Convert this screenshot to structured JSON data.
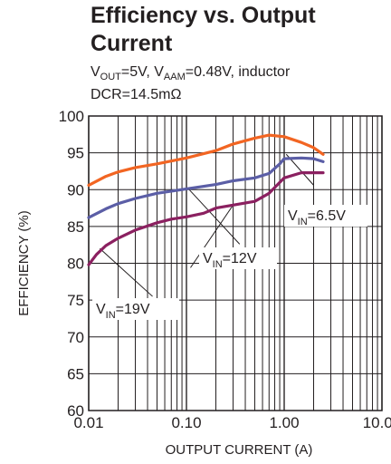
{
  "chart_data": {
    "type": "line",
    "title_line1": "Efficiency vs. Output",
    "title_line2": "Current",
    "subtitle_line1": {
      "v_out": "V",
      "v_out_sub": "OUT",
      "v_out_val": "=5V, ",
      "v_aam": "V",
      "v_aam_sub": "AAM",
      "v_aam_val": "=0.48V, inductor"
    },
    "subtitle_line2": "DCR=14.5mΩ",
    "xlabel": "OUTPUT CURRENT (A)",
    "ylabel": "EFFICIENCY (%)",
    "x_scale": "log",
    "xlim": [
      0.01,
      10
    ],
    "ylim": [
      60,
      100
    ],
    "x_ticks": [
      0.01,
      0.1,
      1,
      10
    ],
    "x_tick_labels": [
      "0.01",
      "0.10",
      "1.00",
      "10.00"
    ],
    "y_ticks": [
      60,
      65,
      70,
      75,
      80,
      85,
      90,
      95,
      100
    ],
    "y_tick_labels": [
      "60",
      "65",
      "70",
      "75",
      "80",
      "85",
      "90",
      "95",
      "100"
    ],
    "grid": true,
    "series": [
      {
        "label_main": "V",
        "label_sub": "IN",
        "label_val": "=6.5V",
        "color": "#f26522",
        "x": [
          0.01,
          0.015,
          0.02,
          0.03,
          0.05,
          0.1,
          0.2,
          0.3,
          0.5,
          0.7,
          1.0,
          1.5,
          2.0,
          2.5
        ],
        "y": [
          90.6,
          91.8,
          92.4,
          93.0,
          93.5,
          94.3,
          95.3,
          96.2,
          97.0,
          97.4,
          97.2,
          96.4,
          95.7,
          94.8
        ]
      },
      {
        "label_main": "V",
        "label_sub": "IN",
        "label_val": "=12V",
        "color": "#5b5ea6",
        "x": [
          0.01,
          0.015,
          0.02,
          0.03,
          0.05,
          0.07,
          0.1,
          0.2,
          0.3,
          0.5,
          0.7,
          0.9,
          1.0,
          1.5,
          2.0,
          2.5
        ],
        "y": [
          86.2,
          87.4,
          88.1,
          88.8,
          89.5,
          89.8,
          90.1,
          90.7,
          91.2,
          91.6,
          92.2,
          93.5,
          94.2,
          94.3,
          94.2,
          93.8
        ]
      },
      {
        "label_main": "V",
        "label_sub": "IN",
        "label_val": "=19V",
        "color": "#8b2060",
        "x": [
          0.01,
          0.012,
          0.015,
          0.02,
          0.03,
          0.05,
          0.07,
          0.1,
          0.15,
          0.2,
          0.3,
          0.5,
          0.7,
          1.0,
          1.5,
          2.0,
          2.5
        ],
        "y": [
          79.8,
          81.2,
          82.4,
          83.4,
          84.5,
          85.5,
          86.0,
          86.3,
          86.8,
          87.5,
          87.9,
          88.4,
          89.5,
          91.6,
          92.3,
          92.3,
          92.3
        ]
      }
    ]
  }
}
